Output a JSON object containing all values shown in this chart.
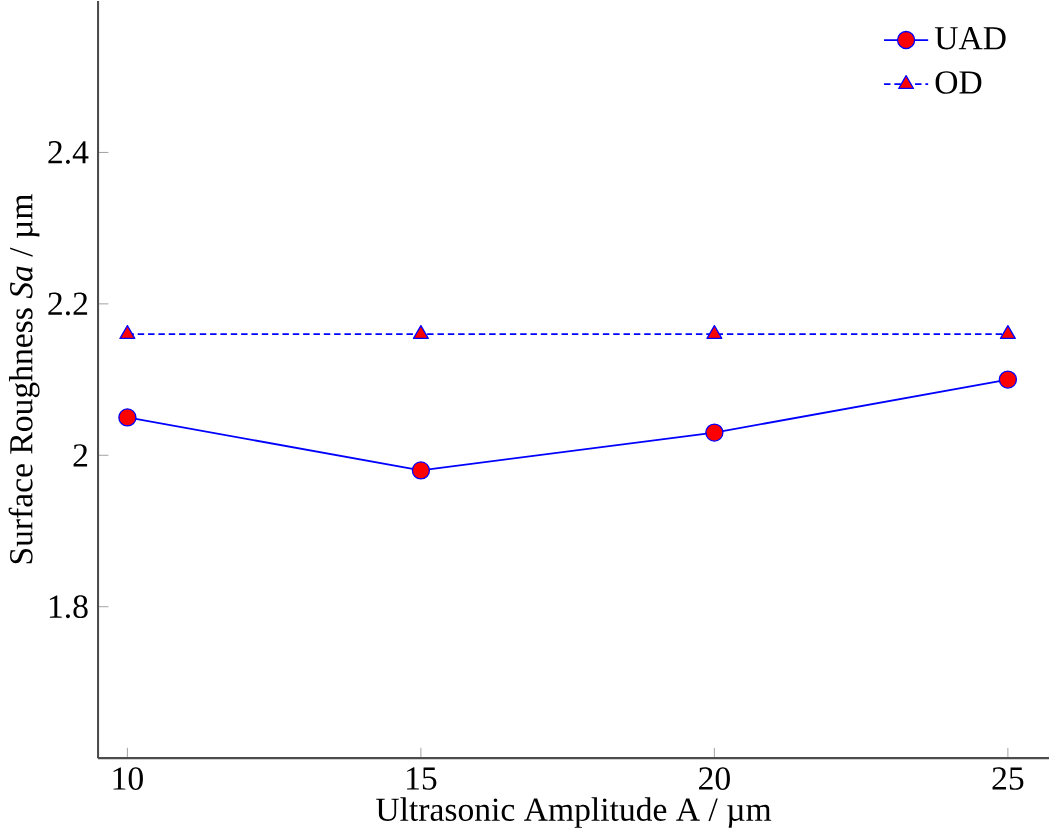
{
  "chart_data": {
    "type": "line",
    "xlabel": "Ultrasonic Amplitude A / µm",
    "ylabel": "Surface Roughness *Sa* / µm",
    "x": [
      10,
      15,
      20,
      25
    ],
    "xlim": [
      9.5,
      25.7
    ],
    "ylim": [
      1.6,
      2.6
    ],
    "xticks": [
      10,
      15,
      20,
      25
    ],
    "yticks": [
      1.8,
      2,
      2.2,
      2.4
    ],
    "grid": false,
    "legend": "top right",
    "series": [
      {
        "name": "UAD",
        "color": "#0000ff",
        "values": [
          2.05,
          1.98,
          2.03,
          2.1
        ],
        "marker": "circle",
        "line_style": "solid"
      },
      {
        "name": "OD",
        "color": "#0000ff",
        "values": [
          2.16,
          2.16,
          2.16,
          2.16
        ],
        "marker": "triangle",
        "line_style": "dashed"
      }
    ]
  }
}
